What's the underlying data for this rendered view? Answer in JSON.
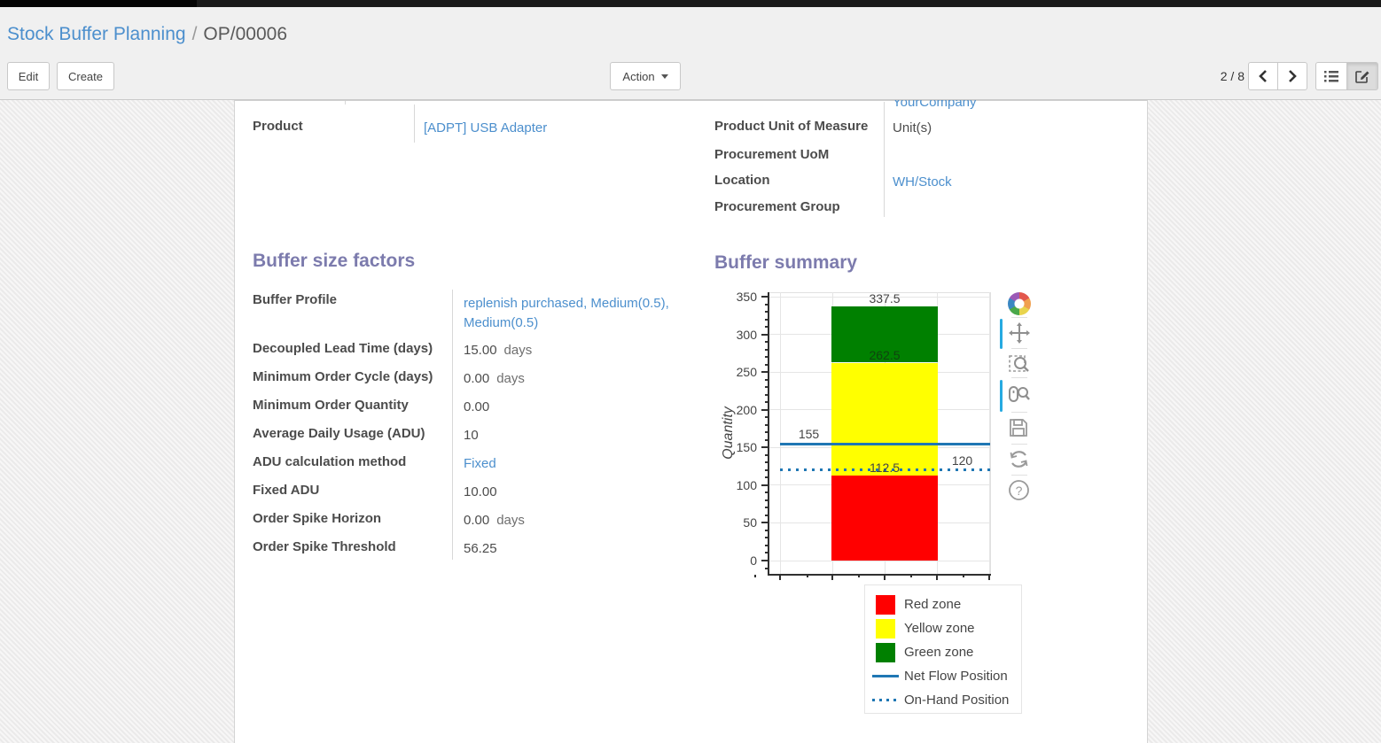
{
  "colors": {
    "topbar": "#1a1a1a",
    "link_blue": "#4c8fcd",
    "section_title_purple": "#7c7bad",
    "label_gray": "#4c4c4c",
    "red_zone": "#ff0000",
    "yellow_zone": "#ffff00",
    "green_zone": "#008000",
    "flow_line_blue": "#1f77b4",
    "active_tool_blue": "#26aae1"
  },
  "breadcrumb": {
    "parent": "Stock Buffer Planning",
    "separator": "/",
    "current": "OP/00006"
  },
  "toolbar": {
    "edit": "Edit",
    "create": "Create",
    "action": "Action",
    "pager": "2 / 8"
  },
  "form": {
    "clipped_company": "YourCompany",
    "product": {
      "label": "Product",
      "value": "[ADPT] USB Adapter"
    },
    "right_fields": [
      {
        "label": "Product Unit of Measure",
        "value": "Unit(s)"
      },
      {
        "label": "Procurement UoM",
        "value": ""
      },
      {
        "label": "Location",
        "value": "WH/Stock"
      },
      {
        "label": "Procurement Group",
        "value": ""
      }
    ],
    "factors": {
      "title": "Buffer size factors",
      "rows": [
        {
          "label": "Buffer Profile",
          "value": "replenish purchased, Medium(0.5), Medium(0.5)",
          "suffix": ""
        },
        {
          "label": "Decoupled Lead Time (days)",
          "value": "15.00",
          "suffix": "days"
        },
        {
          "label": "Minimum Order Cycle (days)",
          "value": "0.00",
          "suffix": "days"
        },
        {
          "label": "Minimum Order Quantity",
          "value": "0.00",
          "suffix": ""
        },
        {
          "label": "Average Daily Usage (ADU)",
          "value": "10",
          "suffix": ""
        },
        {
          "label": "ADU calculation method",
          "value": "Fixed",
          "suffix": ""
        },
        {
          "label": "Fixed ADU",
          "value": "10.00",
          "suffix": ""
        },
        {
          "label": "Order Spike Horizon",
          "value": "0.00",
          "suffix": "days"
        },
        {
          "label": "Order Spike Threshold",
          "value": "56.25",
          "suffix": ""
        }
      ]
    },
    "summary_title": "Buffer summary"
  },
  "chart_data": {
    "type": "bar",
    "title": "Buffer summary",
    "xlabel": "",
    "ylabel": "Quantity",
    "ylim": [
      0,
      350
    ],
    "yticks": [
      0,
      50,
      100,
      150,
      200,
      250,
      300,
      350
    ],
    "grid": true,
    "legend_position": "below-right",
    "zones": [
      {
        "name": "Red zone",
        "color": "#ff0000",
        "from": 0,
        "to": 112.5,
        "label": "112.5"
      },
      {
        "name": "Yellow zone",
        "color": "#ffff00",
        "from": 112.5,
        "to": 262.5,
        "label": "262.5"
      },
      {
        "name": "Green zone",
        "color": "#008000",
        "from": 262.5,
        "to": 337.5,
        "label": "337.5"
      }
    ],
    "lines": [
      {
        "name": "Net Flow Position",
        "value": 155,
        "style": "solid",
        "color": "#1f77b4",
        "label": "155",
        "label_side": "left"
      },
      {
        "name": "On-Hand Position",
        "value": 120,
        "style": "dotted",
        "color": "#1f77b4",
        "label": "120",
        "label_side": "right"
      }
    ],
    "legend": [
      "Red zone",
      "Yellow zone",
      "Green zone",
      "Net Flow Position",
      "On-Hand Position"
    ],
    "toolbar_tools": [
      "bokeh-logo",
      "pan",
      "box-zoom",
      "wheel-zoom",
      "save",
      "reset",
      "help"
    ],
    "active_tools": [
      "pan",
      "wheel-zoom"
    ]
  }
}
